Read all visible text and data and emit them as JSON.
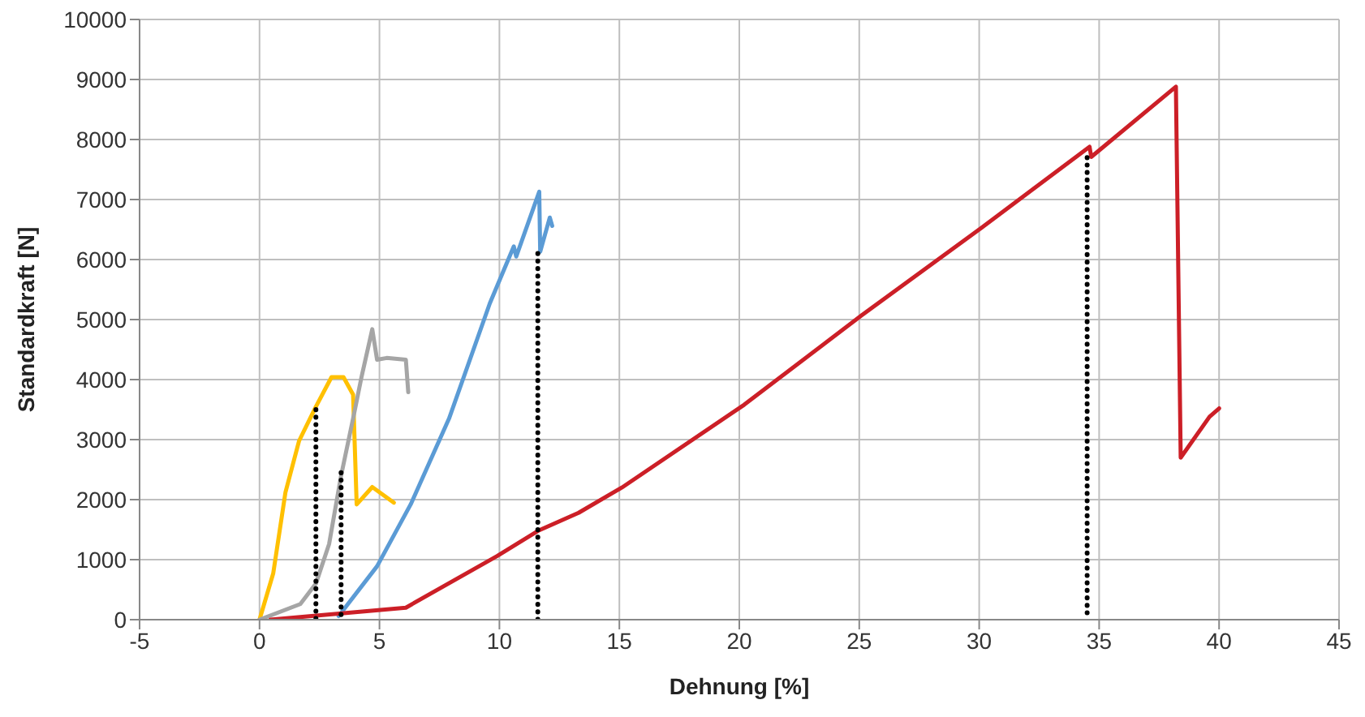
{
  "chart_data": {
    "type": "line",
    "xlabel": "Dehnung [%]",
    "ylabel": "Standardkraft [N]",
    "xlim": [
      -5,
      45
    ],
    "xticks": [
      -5,
      0,
      5,
      10,
      15,
      20,
      25,
      30,
      35,
      40,
      45
    ],
    "ylim": [
      0,
      10000
    ],
    "yticks": [
      0,
      1000,
      2000,
      3000,
      4000,
      5000,
      6000,
      7000,
      8000,
      9000,
      10000
    ],
    "grid": true,
    "marker": "none",
    "line_style": "solid",
    "series": [
      {
        "color": "#ffc000",
        "x": [
          0,
          0.57,
          1.08,
          1.65,
          2.35,
          3,
          3.5,
          3.9,
          4.05,
          4.7,
          5.6
        ],
        "values": [
          0,
          770,
          2120,
          2980,
          3550,
          4040,
          4040,
          3750,
          1920,
          2210,
          1950
        ]
      },
      {
        "color": "#a5a5a5",
        "x": [
          0,
          1.7,
          2.35,
          2.9,
          3.4,
          3.9,
          4.25,
          4.7,
          4.9,
          5.3,
          6.1,
          6.2
        ],
        "values": [
          0,
          260,
          600,
          1260,
          2400,
          3350,
          4040,
          4840,
          4330,
          4360,
          4330,
          3790
        ]
      },
      {
        "color": "#5b9bd5",
        "x": [
          3.3,
          4.9,
          6.3,
          7.9,
          9.6,
          10.6,
          10.7,
          11.66,
          11.7,
          12.1,
          12.2
        ],
        "values": [
          60,
          890,
          1920,
          3350,
          5270,
          6220,
          6050,
          7130,
          6130,
          6700,
          6560
        ]
      },
      {
        "color": "#cc1f27",
        "x": [
          0.45,
          6.1,
          9.9,
          11.66,
          13.3,
          15.1,
          20.2,
          25.1,
          30.1,
          34.6,
          34.67,
          38.2,
          38.4,
          39.6,
          40
        ],
        "values": [
          0,
          200,
          1060,
          1490,
          1780,
          2200,
          3580,
          5070,
          6530,
          7880,
          7710,
          8880,
          2700,
          3380,
          3520
        ]
      },
      {
        "color": "#000000",
        "line_style": "dotted",
        "x": [
          2.35,
          2.35
        ],
        "values": [
          3500,
          0
        ]
      },
      {
        "color": "#000000",
        "line_style": "dotted",
        "x": [
          3.4,
          3.4
        ],
        "values": [
          2450,
          0
        ]
      },
      {
        "color": "#000000",
        "line_style": "dotted",
        "x": [
          11.6,
          11.6
        ],
        "values": [
          6100,
          0
        ]
      },
      {
        "color": "#000000",
        "line_style": "dotted",
        "x": [
          34.5,
          34.5
        ],
        "values": [
          7700,
          0
        ]
      }
    ]
  }
}
